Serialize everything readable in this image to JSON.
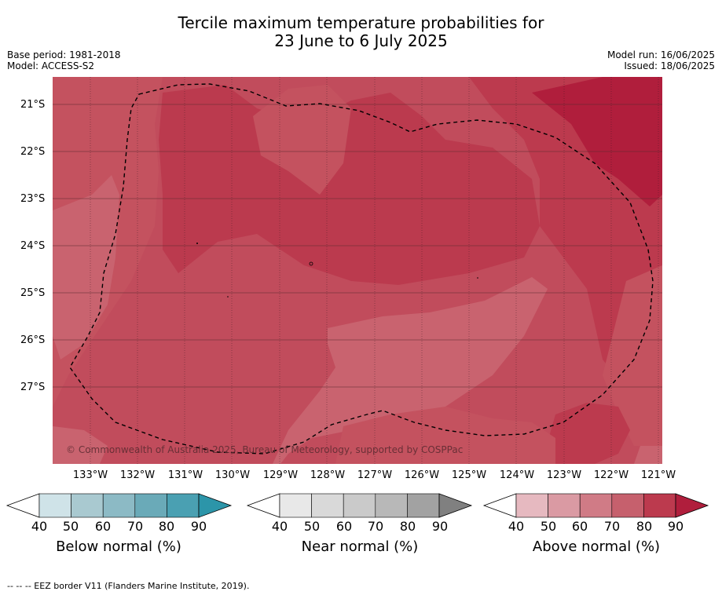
{
  "title_line1": "Tercile maximum temperature probabilities for",
  "title_line2": "23 June to 6 July 2025",
  "meta_left": {
    "base_period": "Base period: 1981-2018",
    "model": "Model: ACCESS-S2"
  },
  "meta_right": {
    "model_run": "Model run: 16/06/2025",
    "issued": "Issued: 18/06/2025"
  },
  "latitude_labels": [
    "21°S",
    "22°S",
    "23°S",
    "24°S",
    "25°S",
    "26°S",
    "27°S"
  ],
  "longitude_labels": [
    "133°W",
    "132°W",
    "131°W",
    "130°W",
    "129°W",
    "128°W",
    "127°W",
    "126°W",
    "125°W",
    "124°W",
    "123°W",
    "122°W",
    "121°W"
  ],
  "copyright": "© Commonwealth of Australia 2025, Bureau of Meteorology, supported by COSPPac",
  "legends": [
    {
      "title": "Below normal (%)",
      "ticks": [
        "40",
        "50",
        "60",
        "70",
        "80",
        "90"
      ],
      "colors": [
        "#cfe3e8",
        "#a9c9d0",
        "#8cbac5",
        "#6aaab8",
        "#4aa0b2",
        "#2c95a9"
      ]
    },
    {
      "title": "Near normal (%)",
      "ticks": [
        "40",
        "50",
        "60",
        "70",
        "80",
        "90"
      ],
      "colors": [
        "#e8e8e8",
        "#d9d9d9",
        "#cacaca",
        "#b8b8b8",
        "#a2a2a2",
        "#808080"
      ]
    },
    {
      "title": "Above normal (%)",
      "ticks": [
        "40",
        "50",
        "60",
        "70",
        "80",
        "90"
      ],
      "colors": [
        "#e6b9c0",
        "#da9aa3",
        "#d07b86",
        "#c6606d",
        "#bc3a4e",
        "#b01e3c"
      ]
    }
  ],
  "footnote": "-- -- -- EEZ border V11 (Flanders Marine Institute, 2019).",
  "map_colors": {
    "above_60": "#c6606d",
    "above_70": "#c0505e",
    "above_80": "#bc3a4e",
    "above_90": "#b01e3c"
  }
}
